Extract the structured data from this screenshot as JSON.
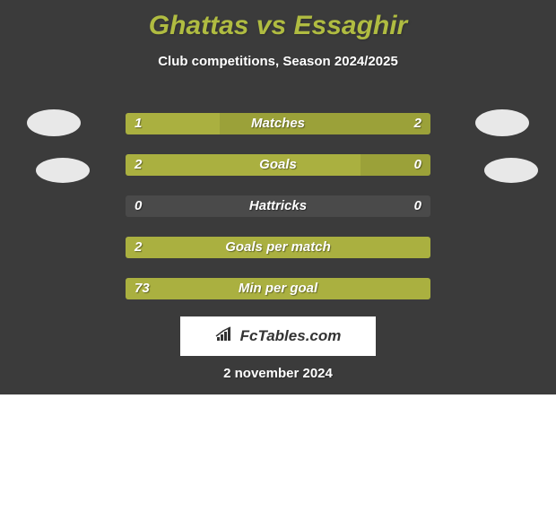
{
  "page": {
    "background_color": "#3b3b3b",
    "text_color": "#ffffff",
    "title_color": "#b0bc41",
    "title": "Ghattas vs Essaghir",
    "subtitle": "Club competitions, Season 2024/2025",
    "date": "2 november 2024"
  },
  "stats": {
    "track_color": "#4a4a4a",
    "bar_color": "#aab040",
    "bar_color_muted": "#9ba139",
    "border_radius": 3,
    "rows": [
      {
        "label": "Matches",
        "left_val": "1",
        "right_val": "2",
        "left_pct": 31,
        "right_pct": 69
      },
      {
        "label": "Goals",
        "left_val": "2",
        "right_val": "0",
        "left_pct": 77,
        "right_pct": 23
      },
      {
        "label": "Hattricks",
        "left_val": "0",
        "right_val": "0",
        "left_pct": 0,
        "right_pct": 0
      },
      {
        "label": "Goals per match",
        "left_val": "2",
        "right_val": "",
        "left_pct": 100,
        "right_pct": 0
      },
      {
        "label": "Min per goal",
        "left_val": "73",
        "right_val": "",
        "left_pct": 100,
        "right_pct": 0
      }
    ]
  },
  "avatars": {
    "placeholder_color": "#e8e8e8"
  },
  "brand": {
    "box_bg": "#ffffff",
    "text_color": "#333333",
    "text": "FcTables.com",
    "icon_color": "#333333"
  }
}
